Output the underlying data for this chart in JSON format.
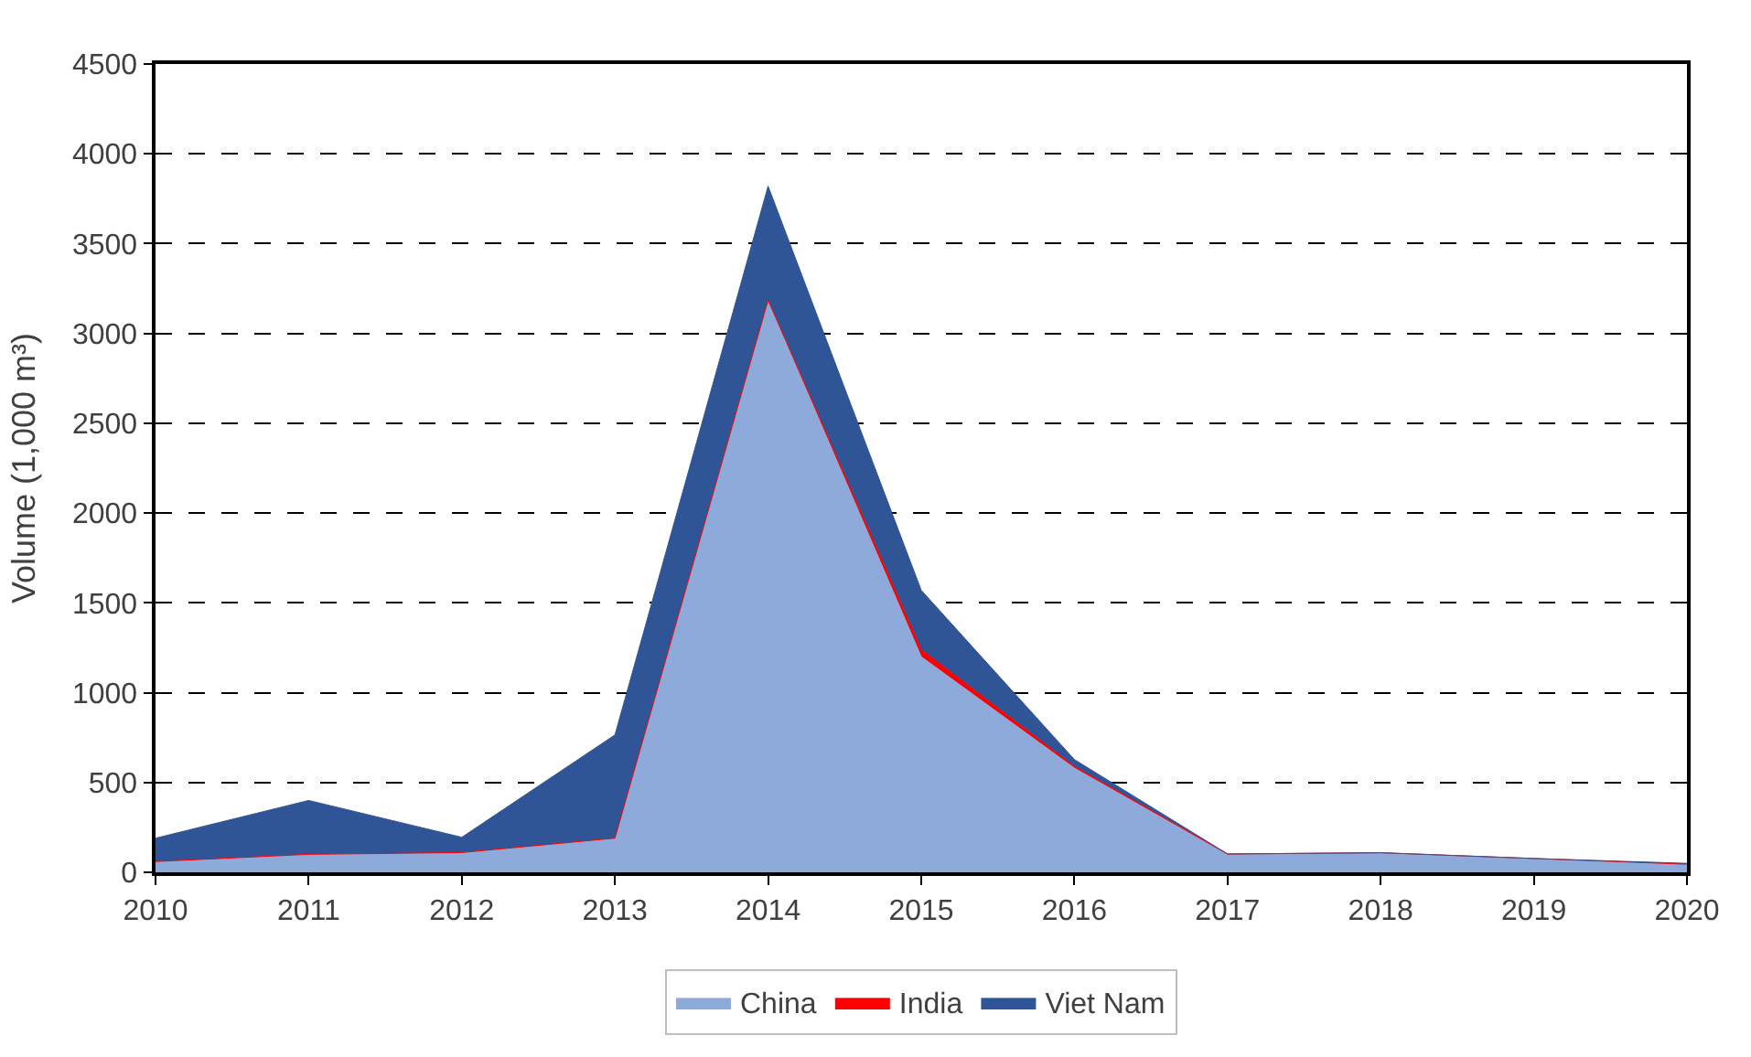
{
  "chart_data": {
    "type": "area",
    "stacked": true,
    "ylabel": "Volume (1,000 m³)",
    "x": [
      2010,
      2011,
      2012,
      2013,
      2014,
      2015,
      2016,
      2017,
      2018,
      2019,
      2020
    ],
    "series": [
      {
        "name": "China",
        "color": "#8eaadb",
        "values": [
          60,
          100,
          110,
          190,
          3180,
          1200,
          580,
          97,
          107,
          75,
          45
        ]
      },
      {
        "name": "India",
        "color": "#ff0000",
        "values": [
          0,
          0,
          0,
          0,
          5,
          40,
          10,
          5,
          2,
          2,
          0
        ]
      },
      {
        "name": "Viet Nam",
        "color": "#2f5597",
        "values": [
          130,
          300,
          85,
          575,
          635,
          330,
          38,
          0,
          0,
          0,
          5
        ]
      }
    ],
    "xlim": [
      2010,
      2020
    ],
    "xticks": [
      2010,
      2011,
      2012,
      2013,
      2014,
      2015,
      2016,
      2017,
      2018,
      2019,
      2020
    ],
    "ylim": [
      0,
      4500
    ],
    "yticks": [
      0,
      500,
      1000,
      1500,
      2000,
      2500,
      3000,
      3500,
      4000,
      4500
    ],
    "grid": "y",
    "line_style": "dashed",
    "legend": "bottom"
  }
}
